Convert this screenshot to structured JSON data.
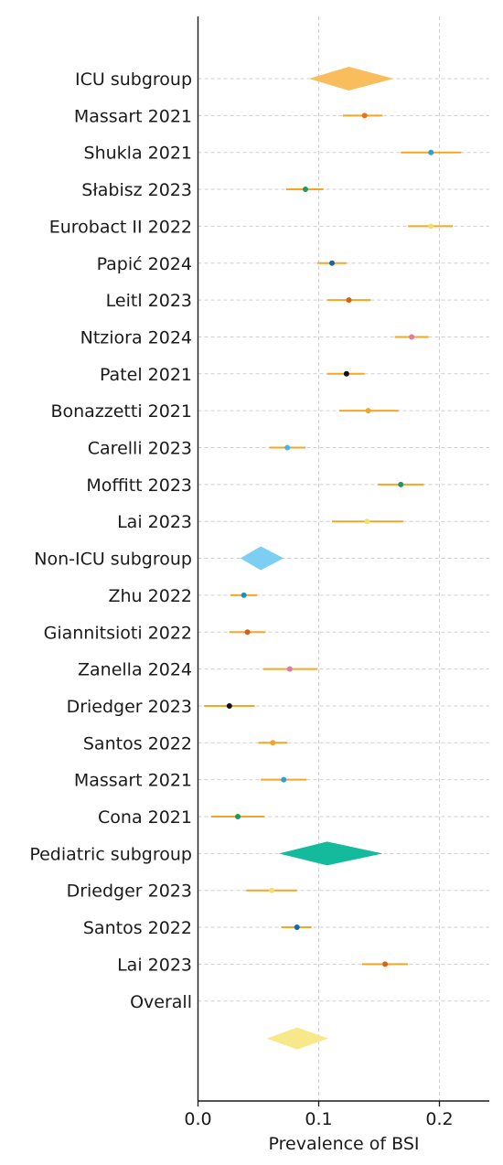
{
  "chart_data": {
    "type": "forest",
    "title": "",
    "xlabel": "Prevalence of BSI",
    "ylabel": "",
    "xlim": [
      0.0,
      0.25
    ],
    "xticks": [
      {
        "value": 0.0,
        "label": "0.0"
      },
      {
        "value": 0.1,
        "label": "0.1"
      },
      {
        "value": 0.2,
        "label": "0.2"
      }
    ],
    "grid": true,
    "rows": [
      {
        "label": "ICU subgroup",
        "kind": "diamond",
        "est": 0.125,
        "lo": 0.092,
        "hi": 0.162,
        "color": "#F9BD5D"
      },
      {
        "label": "Massart 2021",
        "kind": "study",
        "est": 0.138,
        "lo": 0.12,
        "hi": 0.153,
        "color": "#E8731F"
      },
      {
        "label": "Shukla 2021",
        "kind": "study",
        "est": 0.193,
        "lo": 0.168,
        "hi": 0.218,
        "color": "#2E9FD0"
      },
      {
        "label": "Słabisz 2023",
        "kind": "study",
        "est": 0.089,
        "lo": 0.073,
        "hi": 0.104,
        "color": "#1E9A5C"
      },
      {
        "label": "Eurobact II 2022",
        "kind": "study",
        "est": 0.193,
        "lo": 0.174,
        "hi": 0.211,
        "color": "#F2DF6D"
      },
      {
        "label": "Papić 2024",
        "kind": "study",
        "est": 0.111,
        "lo": 0.099,
        "hi": 0.123,
        "color": "#1767A8"
      },
      {
        "label": "Leitl 2023",
        "kind": "study",
        "est": 0.125,
        "lo": 0.107,
        "hi": 0.143,
        "color": "#D5611A"
      },
      {
        "label": "Ntziora 2024",
        "kind": "study",
        "est": 0.177,
        "lo": 0.163,
        "hi": 0.191,
        "color": "#E377A8"
      },
      {
        "label": "Patel 2021",
        "kind": "study",
        "est": 0.123,
        "lo": 0.107,
        "hi": 0.138,
        "color": "#111111"
      },
      {
        "label": "Bonazzetti 2021",
        "kind": "study",
        "est": 0.141,
        "lo": 0.117,
        "hi": 0.166,
        "color": "#F0A531"
      },
      {
        "label": "Carelli 2023",
        "kind": "study",
        "est": 0.074,
        "lo": 0.059,
        "hi": 0.089,
        "color": "#49B7E3"
      },
      {
        "label": "Moffitt 2023",
        "kind": "study",
        "est": 0.168,
        "lo": 0.149,
        "hi": 0.187,
        "color": "#1E9A5C"
      },
      {
        "label": "Lai 2023",
        "kind": "study",
        "est": 0.14,
        "lo": 0.111,
        "hi": 0.17,
        "color": "#F2DF6D"
      },
      {
        "label": "Non-ICU subgroup",
        "kind": "diamond",
        "est": 0.052,
        "lo": 0.035,
        "hi": 0.071,
        "color": "#7CCFF2"
      },
      {
        "label": "Zhu 2022",
        "kind": "study",
        "est": 0.038,
        "lo": 0.027,
        "hi": 0.049,
        "color": "#1E8FB8"
      },
      {
        "label": "Giannitsioti 2022",
        "kind": "study",
        "est": 0.041,
        "lo": 0.026,
        "hi": 0.056,
        "color": "#D5611A"
      },
      {
        "label": "Zanella 2024",
        "kind": "study",
        "est": 0.076,
        "lo": 0.054,
        "hi": 0.099,
        "color": "#E377A8"
      },
      {
        "label": "Driedger 2023",
        "kind": "study",
        "est": 0.026,
        "lo": 0.005,
        "hi": 0.047,
        "color": "#111111"
      },
      {
        "label": "Santos 2022",
        "kind": "study",
        "est": 0.062,
        "lo": 0.05,
        "hi": 0.074,
        "color": "#F0A531"
      },
      {
        "label": "Massart 2021",
        "kind": "study",
        "est": 0.071,
        "lo": 0.052,
        "hi": 0.09,
        "color": "#2E9FD0"
      },
      {
        "label": "Cona 2021",
        "kind": "study",
        "est": 0.033,
        "lo": 0.011,
        "hi": 0.055,
        "color": "#1E9A5C"
      },
      {
        "label": "Pediatric subgroup",
        "kind": "diamond",
        "est": 0.107,
        "lo": 0.067,
        "hi": 0.153,
        "color": "#14BA9C"
      },
      {
        "label": "Driedger 2023",
        "kind": "study",
        "est": 0.061,
        "lo": 0.04,
        "hi": 0.082,
        "color": "#F2DF6D"
      },
      {
        "label": "Santos 2022",
        "kind": "study",
        "est": 0.082,
        "lo": 0.069,
        "hi": 0.094,
        "color": "#1767A8"
      },
      {
        "label": "Lai 2023",
        "kind": "study",
        "est": 0.155,
        "lo": 0.136,
        "hi": 0.174,
        "color": "#D5611A"
      },
      {
        "label": "Overall",
        "kind": "label",
        "est": null,
        "lo": null,
        "hi": null,
        "color": ""
      }
    ],
    "overall_diamond": {
      "est": 0.082,
      "lo": 0.057,
      "hi": 0.108,
      "color": "#F7E889"
    },
    "ci_line_color": "#F5A623",
    "grid_color": "#cfcfcf"
  }
}
